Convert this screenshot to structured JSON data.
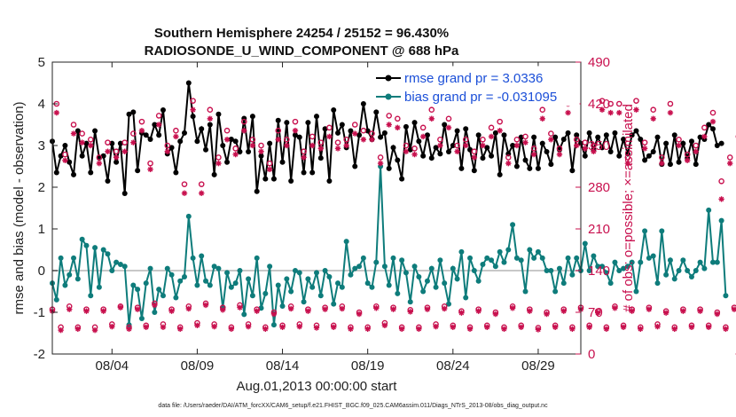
{
  "chart_data": {
    "type": "line",
    "title": [
      "Southern Hemisphere 24254 / 25152 = 96.430%",
      "RADIOSONDE_U_WIND_COMPONENT @ 688 hPa"
    ],
    "xlabel": "Aug.01,2013 00:00:00 start",
    "ylabel": "rmse and bias (model - observation)",
    "ylabel_right": "# of obs: o=possible; ×=assimilated",
    "xlim": [
      0.5,
      31.5
    ],
    "ylim": [
      -2,
      5
    ],
    "ylim_right": [
      0,
      490
    ],
    "xticks": [
      {
        "x": 4,
        "label": "08/04"
      },
      {
        "x": 9,
        "label": "08/09"
      },
      {
        "x": 14,
        "label": "08/14"
      },
      {
        "x": 19,
        "label": "08/19"
      },
      {
        "x": 24,
        "label": "08/24"
      },
      {
        "x": 29,
        "label": "08/29"
      }
    ],
    "yticks": [
      -2,
      -1,
      0,
      1,
      2,
      3,
      4,
      5
    ],
    "yticks_right": [
      0,
      70,
      140,
      210,
      280,
      350,
      420,
      490
    ],
    "zero_line": 0,
    "legend": [
      {
        "name": "rmse grand pr = 3.0336",
        "color": "#000000"
      },
      {
        "name": "bias grand pr = -0.031095",
        "color": "#0e7c7b"
      }
    ],
    "footnote": "data file: /Users/raeder/DAI/ATM_forcXX/CAM6_setup/f.e21.FHIST_BGC.f09_025.CAM6assim.011/Diags_NTrS_2013-08/obs_diag_output.nc",
    "series": [
      {
        "name": "rmse",
        "color": "#000000",
        "x_start": 0.5,
        "x_step": 0.25,
        "values": [
          3.1,
          2.35,
          2.75,
          3.0,
          2.6,
          2.3,
          3.35,
          2.75,
          3.05,
          2.35,
          3.35,
          2.7,
          2.75,
          2.15,
          3.05,
          2.6,
          3.05,
          1.85,
          3.75,
          3.8,
          2.4,
          3.3,
          3.25,
          3.15,
          3.5,
          3.25,
          3.85,
          2.8,
          2.95,
          2.35,
          3.1,
          3.3,
          4.5,
          3.7,
          3.1,
          3.4,
          2.9,
          3.5,
          2.3,
          3.75,
          3.0,
          2.6,
          3.15,
          3.1,
          2.85,
          3.65,
          2.85,
          3.7,
          1.9,
          2.75,
          2.2,
          3.05,
          2.2,
          3.6,
          2.6,
          3.55,
          2.15,
          3.25,
          3.2,
          2.35,
          3.55,
          2.35,
          3.7,
          2.7,
          3.4,
          2.15,
          3.85,
          3.3,
          3.5,
          2.95,
          3.35,
          2.5,
          3.25,
          4.0,
          3.35,
          3.15,
          3.8,
          3.2,
          3.3,
          2.45,
          2.95,
          2.65,
          2.2,
          3.45,
          2.9,
          3.55,
          3.1,
          2.75,
          3.25,
          2.7,
          2.95,
          2.8,
          3.5,
          2.85,
          3.0,
          3.35,
          2.45,
          3.4,
          2.9,
          2.4,
          3.25,
          2.7,
          2.95,
          2.75,
          3.3,
          2.3,
          3.25,
          2.8,
          3.0,
          2.5,
          3.2,
          2.65,
          2.45,
          3.2,
          2.45,
          3.05,
          2.85,
          2.55,
          3.2,
          2.9,
          3.15,
          3.3,
          2.4,
          3.25,
          3.05,
          2.75,
          3.3,
          2.9,
          3.2,
          2.95,
          3.25,
          2.85,
          3.3,
          2.75,
          3.15,
          2.8,
          3.25,
          3.35,
          3.15,
          2.65,
          2.75,
          2.85,
          3.2,
          2.55,
          3.05,
          2.55,
          3.25,
          2.6,
          3.05,
          2.7,
          3.1,
          2.55,
          3.2,
          3.15,
          3.5,
          3.4,
          3.0,
          3.05
        ]
      },
      {
        "name": "bias",
        "color": "#0e7c7b",
        "x_start": 0.5,
        "x_step": 0.25,
        "values": [
          -0.3,
          -0.7,
          0.3,
          -0.35,
          -0.1,
          0.3,
          -0.2,
          0.75,
          0.6,
          -0.6,
          0.55,
          -0.4,
          0.5,
          0.4,
          0.0,
          0.2,
          0.15,
          0.1,
          -1.3,
          -0.35,
          -0.45,
          -1.15,
          -0.3,
          0.05,
          -1.0,
          -0.45,
          -0.6,
          0.05,
          -0.1,
          -0.65,
          -0.25,
          -0.15,
          1.3,
          0.3,
          -0.35,
          0.35,
          -0.25,
          -0.35,
          0.1,
          0.05,
          -0.9,
          -0.05,
          -0.4,
          -0.3,
          0.0,
          -1.05,
          -0.2,
          -0.6,
          0.3,
          -0.9,
          -0.55,
          0.1,
          -1.3,
          -0.35,
          -0.85,
          -0.2,
          -0.5,
          0.0,
          -0.05,
          -0.75,
          -0.2,
          -0.4,
          -0.05,
          -0.6,
          0.0,
          -0.15,
          -0.8,
          -0.3,
          -0.4,
          0.7,
          -0.1,
          0.05,
          0.1,
          0.3,
          -0.3,
          -0.4,
          0.2,
          2.5,
          0.1,
          -0.35,
          0.3,
          -0.55,
          0.25,
          -0.05,
          -0.75,
          0.1,
          -0.15,
          -0.5,
          -0.25,
          0.05,
          -0.4,
          0.25,
          -0.3,
          -0.8,
          0.05,
          -0.2,
          0.45,
          -0.65,
          0.3,
          0.0,
          -0.25,
          0.15,
          0.3,
          0.25,
          0.1,
          0.45,
          0.2,
          0.5,
          1.1,
          0.3,
          0.25,
          -0.5,
          0.5,
          0.3,
          0.45,
          0.3,
          0.0,
          0.0,
          -0.5,
          0.05,
          -0.3,
          0.3,
          -0.1,
          0.3,
          0.0,
          0.65,
          0.0,
          0.35,
          0.1,
          0.1,
          -0.05,
          -0.3,
          0.2,
          0.0,
          0.05,
          0.1,
          0.2,
          -0.5,
          0.2,
          0.95,
          0.3,
          0.35,
          -0.3,
          0.95,
          -0.1,
          0.25,
          -0.2,
          0.0,
          0.25,
          0.0,
          -0.15,
          0.0,
          0.2,
          0.05,
          1.45,
          0.2,
          0.2,
          1.2,
          -0.6
        ]
      },
      {
        "name": "obs possible",
        "color": "#c8104e",
        "axis": "right",
        "marker": "o",
        "x_start": 0.5,
        "x_step": 0.25,
        "values": [
          75,
          420,
          45,
          335,
          80,
          385,
          45,
          370,
          75,
          360,
          45,
          330,
          75,
          355,
          50,
          340,
          80,
          355,
          45,
          370,
          78,
          390,
          48,
          320,
          85,
          400,
          50,
          350,
          75,
          375,
          45,
          285,
          80,
          425,
          52,
          285,
          85,
          410,
          50,
          330,
          78,
          375,
          45,
          345,
          82,
          390,
          50,
          360,
          75,
          350,
          45,
          320,
          70,
          375,
          48,
          360,
          80,
          390,
          50,
          340,
          75,
          365,
          48,
          355,
          78,
          380,
          48,
          355,
          80,
          360,
          45,
          385,
          70,
          375,
          45,
          370,
          80,
          330,
          52,
          400,
          78,
          395,
          45,
          350,
          74,
          345,
          45,
          380,
          78,
          410,
          50,
          360,
          80,
          395,
          48,
          350,
          72,
          360,
          45,
          340,
          75,
          360,
          48,
          380,
          70,
          390,
          45,
          330,
          80,
          360,
          48,
          365,
          75,
          345,
          44,
          410,
          70,
          370,
          48,
          345,
          75,
          420,
          45,
          360,
          78,
          355,
          48,
          350,
          72,
          425,
          45,
          420,
          80,
          420,
          48,
          330,
          75,
          425,
          45,
          355,
          78,
          410,
          50,
          330,
          72,
          420,
          45,
          360,
          75,
          335,
          48,
          350,
          75,
          380,
          48,
          405,
          70,
          290,
          45,
          330,
          78,
          365
        ]
      },
      {
        "name": "obs assimilated",
        "color": "#c8104e",
        "axis": "right",
        "marker": "x",
        "x_start": 0.5,
        "x_step": 0.25,
        "values": [
          72,
          405,
          40,
          325,
          75,
          370,
          42,
          355,
          72,
          350,
          40,
          320,
          72,
          340,
          46,
          330,
          78,
          340,
          42,
          355,
          75,
          375,
          45,
          310,
          82,
          385,
          45,
          340,
          72,
          365,
          42,
          270,
          76,
          410,
          48,
          270,
          82,
          395,
          46,
          320,
          74,
          360,
          42,
          335,
          78,
          375,
          46,
          350,
          72,
          340,
          42,
          310,
          67,
          360,
          45,
          350,
          76,
          375,
          46,
          330,
          72,
          350,
          44,
          345,
          75,
          365,
          45,
          345,
          76,
          350,
          42,
          370,
          67,
          360,
          42,
          360,
          77,
          320,
          48,
          385,
          75,
          380,
          42,
          340,
          71,
          335,
          42,
          365,
          75,
          395,
          46,
          350,
          76,
          380,
          45,
          340,
          69,
          350,
          42,
          330,
          72,
          350,
          45,
          365,
          67,
          375,
          42,
          320,
          77,
          350,
          45,
          355,
          72,
          335,
          41,
          395,
          67,
          360,
          45,
          335,
          72,
          405,
          42,
          350,
          75,
          345,
          45,
          340,
          69,
          410,
          42,
          405,
          77,
          405,
          45,
          320,
          72,
          410,
          42,
          345,
          75,
          395,
          46,
          320,
          69,
          405,
          42,
          350,
          72,
          325,
          45,
          340,
          72,
          365,
          45,
          390,
          67,
          260,
          42,
          320,
          75,
          0
        ]
      }
    ]
  }
}
